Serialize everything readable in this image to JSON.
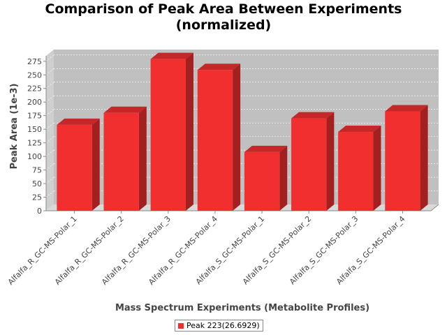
{
  "chart_data": {
    "type": "bar",
    "title_lines": [
      "Comparison of Peak Area Between Experiments",
      "(normalized)"
    ],
    "xlabel": "Mass Spectrum Experiments (Metabolite Profiles)",
    "ylabel": "Peak Area (1e-3)",
    "categories": [
      "Alfalfa_R_GC-MS-Polar_1",
      "Alfalfa_R_GC-MS-Polar_2",
      "Alfalfa_R_GC-MS-Polar_3",
      "Alfalfa_R_GC-MS-Polar_4",
      "Alfalfa_S_GC-MS-Polar_1",
      "Alfalfa_S_GC-MS-Polar_2",
      "Alfalfa_S_GC-MS-Polar_3",
      "Alfalfa_S_GC-MS-Polar_4"
    ],
    "series": [
      {
        "name": "Peak 223(26.6929)",
        "color": "#f22f2f",
        "values": [
          158,
          180,
          279,
          259,
          108,
          170,
          145,
          183
        ]
      }
    ],
    "ylim": [
      0,
      285
    ],
    "yticks": [
      0,
      25,
      50,
      75,
      100,
      125,
      150,
      175,
      200,
      225,
      250,
      275
    ],
    "grid": true,
    "legend_position": "bottom",
    "plot_background": "#c0c0c0",
    "render_3d": true
  }
}
